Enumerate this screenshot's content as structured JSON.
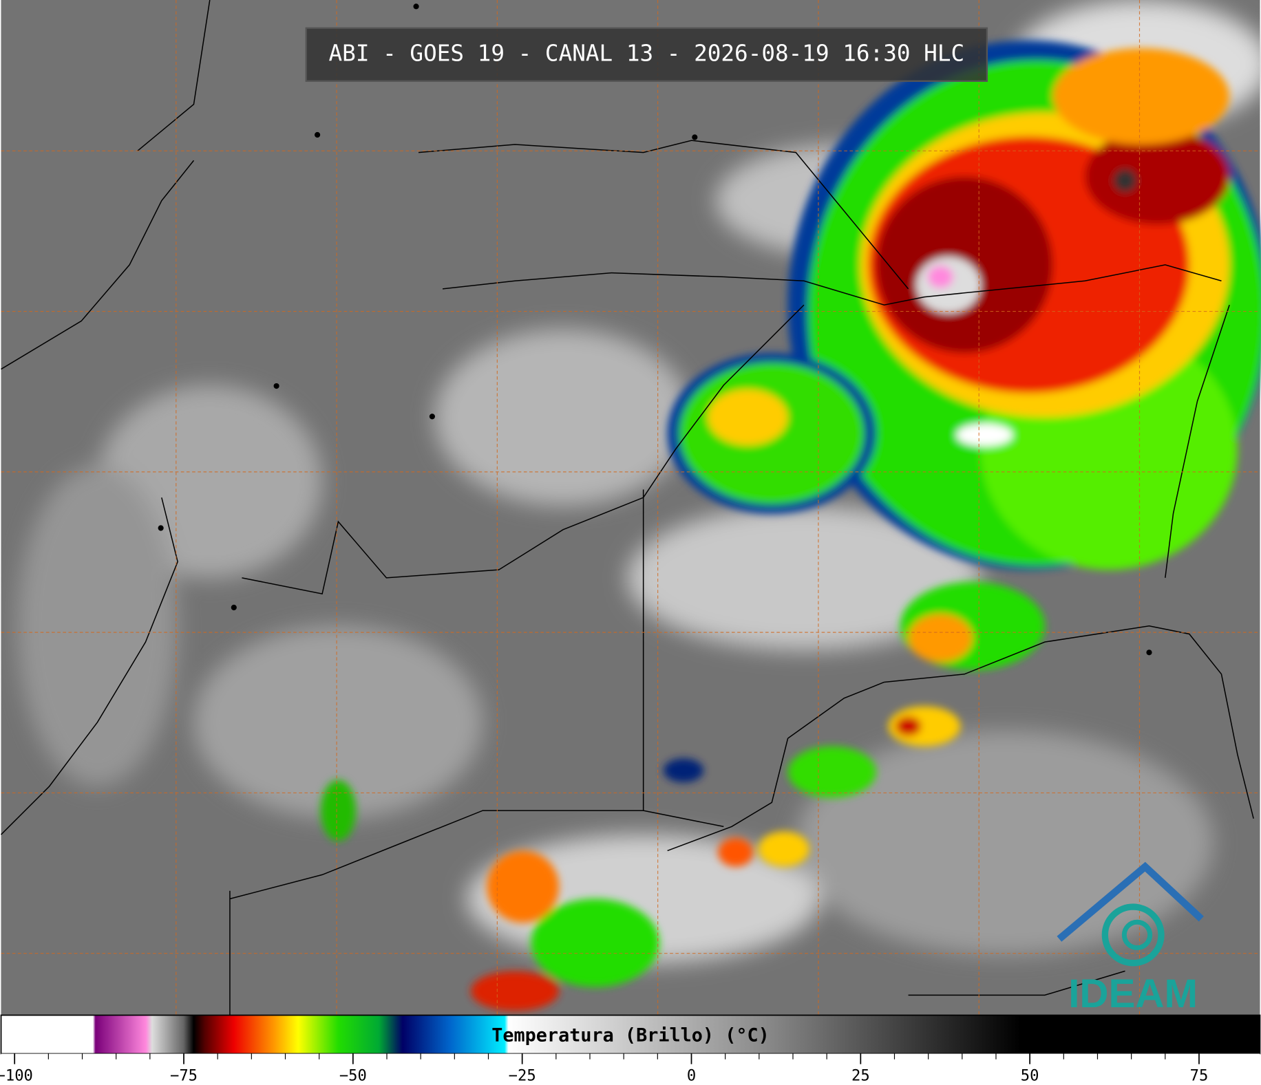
{
  "header": {
    "title": "ABI - GOES 19 - CANAL 13 - 2026-08-19 16:30 HLC"
  },
  "colorbar": {
    "label": "Temperatura (Brillo) (°C)",
    "range": [
      -102,
      84
    ],
    "ticks": [
      {
        "value": -100,
        "label": "−100"
      },
      {
        "value": -75,
        "label": "−75"
      },
      {
        "value": -50,
        "label": "−50"
      },
      {
        "value": -25,
        "label": "−25"
      },
      0,
      25,
      50,
      75
    ]
  },
  "logo": {
    "text": "IDEAM"
  }
}
